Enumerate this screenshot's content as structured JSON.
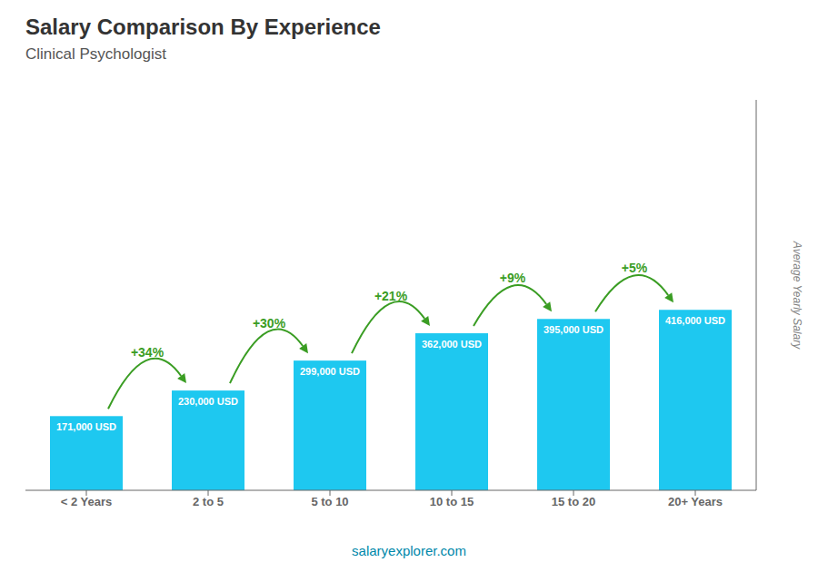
{
  "chart_data": {
    "type": "bar",
    "title": "Salary Comparison By Experience",
    "subtitle": "Clinical Psychologist",
    "categories": [
      "< 2 Years",
      "2 to 5",
      "5 to 10",
      "10 to 15",
      "15 to 20",
      "20+ Years"
    ],
    "values": [
      171000,
      230000,
      299000,
      362000,
      395000,
      416000
    ],
    "value_labels": [
      "171,000 USD",
      "230,000 USD",
      "299,000 USD",
      "362,000 USD",
      "395,000 USD",
      "416,000 USD"
    ],
    "data_labels": true,
    "annotations": [
      "+34%",
      "+30%",
      "+21%",
      "+9%",
      "+5%"
    ],
    "ylabel": "Average Yearly Salary",
    "footer": "salaryexplorer.com",
    "color": "#1EC8F0",
    "ylim": [
      0,
      900000
    ],
    "tick_labels": "x",
    "grid": false
  }
}
